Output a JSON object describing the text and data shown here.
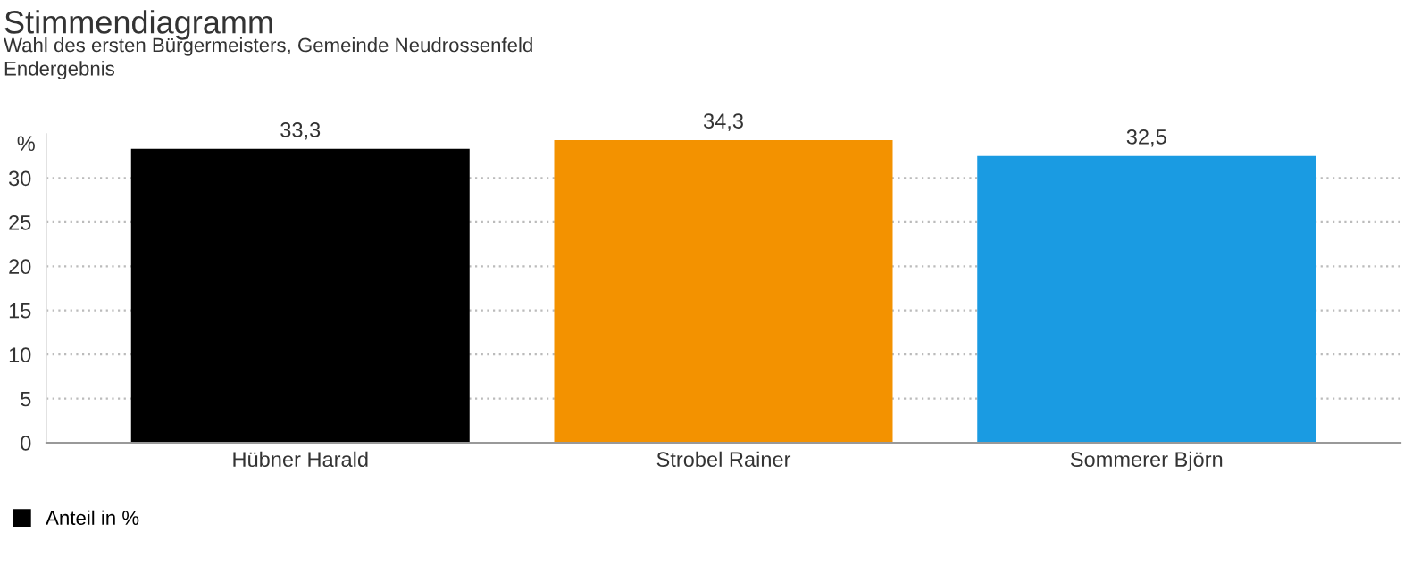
{
  "chart_data": {
    "type": "bar",
    "title": "Stimmendiagramm",
    "subtitle": "Wahl des ersten Bürgermeisters, Gemeinde Neudrossenfeld\nEndergebnis",
    "ylabel": "%",
    "categories": [
      "Hübner Harald",
      "Strobel Rainer",
      "Sommerer Björn"
    ],
    "series": [
      {
        "name": "Anteil in %",
        "colors": [
          "#000000",
          "#f39200",
          "#1a9be2"
        ],
        "values": [
          33.3,
          34.3,
          32.5
        ],
        "value_labels": [
          "33,3",
          "34,3",
          "32,5"
        ]
      }
    ],
    "ylim": [
      0,
      35
    ],
    "yticks": [
      0,
      5,
      10,
      15,
      20,
      25,
      30
    ],
    "grid": "y",
    "legend": "bottom left"
  }
}
